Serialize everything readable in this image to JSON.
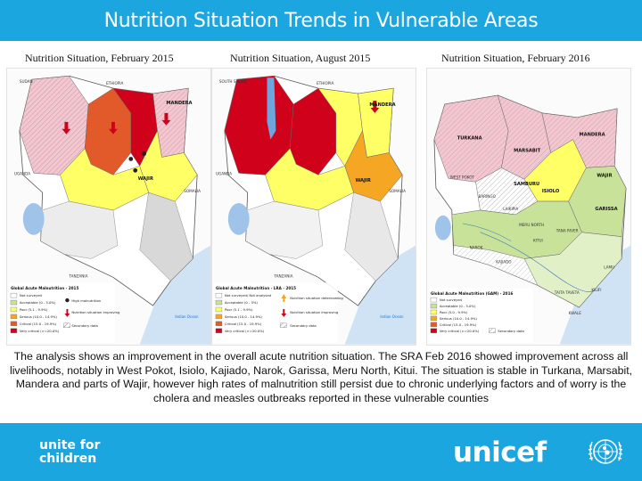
{
  "title": "Nutrition Situation Trends in Vulnerable Areas",
  "maps": [
    {
      "caption": "Nutrition Situation, February 2015",
      "region_labels": [
        "SUDAN",
        "ETHIOPIA",
        "UGANDA",
        "SOMALIA",
        "MANDERA",
        "WAJIR",
        "TANZANIA",
        "Indian Ocean"
      ],
      "legend": {
        "title": "Global Acute Malnutrition - 2015",
        "items": [
          {
            "label": "Not surveyed",
            "color": "#ffffff"
          },
          {
            "label": "Acceptable (0 - 5.0%)",
            "color": "#c9e29a"
          },
          {
            "label": "Poor (5.1 - 9.9%)",
            "color": "#ffff66"
          },
          {
            "label": "Serious (10.0 - 14.9%)",
            "color": "#f5a623"
          },
          {
            "label": "Critical (15.0 - 19.9%)",
            "color": "#e35a2a"
          },
          {
            "label": "Very critical (>=20.0%)",
            "color": "#d0021b"
          }
        ],
        "symbols": [
          {
            "label": "High malnutrition",
            "icon": "circle-marker-icon"
          },
          {
            "label": "Nutrition situation improving",
            "icon": "down-arrow-icon"
          },
          {
            "label": "Secondary data",
            "icon": "hatch-pattern-icon"
          }
        ]
      }
    },
    {
      "caption": "Nutrition Situation,  August 2015",
      "region_labels": [
        "SOUTH SUDAN",
        "ETHIOPIA",
        "UGANDA",
        "SOMALIA",
        "MANDERA",
        "WAJIR",
        "TANZANIA",
        "Indian Ocean"
      ],
      "legend": {
        "title": "Global Acute Malnutrition - LRA - 2015",
        "items": [
          {
            "label": "Not surveyed/ Not analysed",
            "color": "#ffffff"
          },
          {
            "label": "Acceptable (0 - 5%)",
            "color": "#c9e29a"
          },
          {
            "label": "Poor (5.1 - 9.9%)",
            "color": "#ffff66"
          },
          {
            "label": "Serious (10.0 - 14.9%)",
            "color": "#f5a623"
          },
          {
            "label": "Critical (15.0 - 19.9%)",
            "color": "#e35a2a"
          },
          {
            "label": "Very critical (>=20.0%)",
            "color": "#d0021b"
          }
        ],
        "symbols": [
          {
            "label": "Nutrition situation deteriorating",
            "icon": "up-arrow-icon"
          },
          {
            "label": "Nutrition situation improving",
            "icon": "down-arrow-icon"
          },
          {
            "label": "Secondary data",
            "icon": "hatch-pattern-icon"
          }
        ]
      }
    },
    {
      "caption": "Nutrition Situation, February  2016",
      "region_labels": [
        "TURKANA",
        "MANDERA",
        "MARSABIT",
        "WAJIR",
        "WEST POKOT",
        "SAMBURU",
        "ISIOLO",
        "BARINGO",
        "LAIKIPIA",
        "GARISSA",
        "TANA RIVER",
        "MERU NORTH",
        "KITUI",
        "NAROK",
        "KAJIADO",
        "TAITA TAVETA",
        "KWALE",
        "LAMU",
        "KILIFI"
      ],
      "legend": {
        "title": "Global Acute Malnutrition (GAM) - 2016",
        "items": [
          {
            "label": "Not surveyed",
            "color": "#ffffff"
          },
          {
            "label": "Acceptable (0 - 5.0%)",
            "color": "#c9e29a"
          },
          {
            "label": "Poor (5.0 - 9.9%)",
            "color": "#ffff66"
          },
          {
            "label": "Serious (10.0 - 14.9%)",
            "color": "#f5a623"
          },
          {
            "label": "Critical (15.0 - 19.9%)",
            "color": "#e35a2a"
          },
          {
            "label": "Very critical (>=20.0%)",
            "color": "#d0021b"
          }
        ],
        "symbols": [
          {
            "label": "Secondary data",
            "icon": "hatch-pattern-icon"
          }
        ]
      }
    }
  ],
  "analysis_text": "The analysis shows an improvement in the overall acute nutrition situation. The SRA Feb 2016 showed improvement across all livelihoods, notably in West Pokot, Isiolo, Kajiado, Narok, Garissa, Meru North, Kitui. The situation is stable in Turkana, Marsabit, Mandera and parts of Wajir, however high rates of malnutrition still persist due to chronic underlying factors and of worry is the cholera and measles outbreaks reported in these vulnerable counties",
  "footer": {
    "tagline_line1": "unite for",
    "tagline_line2": "children",
    "brand": "unicef"
  },
  "colors": {
    "accent": "#1ca6df",
    "very_critical": "#d0021b",
    "critical": "#e35a2a",
    "serious": "#f5a623",
    "poor": "#ffff66",
    "acceptable": "#c9e29a",
    "water": "#9fc3e9"
  }
}
